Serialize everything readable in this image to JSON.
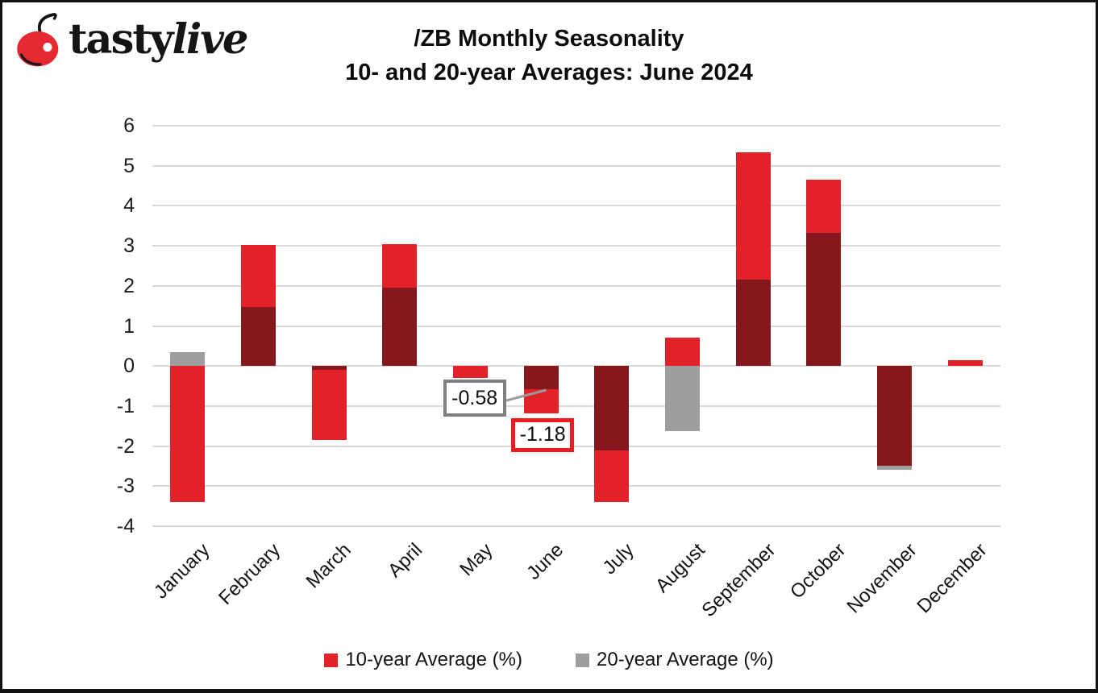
{
  "brand": {
    "text_regular": "tasty",
    "text_italic": "live",
    "cherry_color": "#e42a30",
    "icon": "cherry-icon"
  },
  "title": {
    "line1": "/ZB Monthly Seasonality",
    "line2": "10- and 20-year Averages: June 2024"
  },
  "chart_data": {
    "type": "bar",
    "style": "overlapped-columns",
    "categories": [
      "January",
      "February",
      "March",
      "April",
      "May",
      "June",
      "July",
      "August",
      "September",
      "October",
      "November",
      "December"
    ],
    "series": [
      {
        "name": "10-year Average (%)",
        "color": "#e22128",
        "values": [
          -3.4,
          3.03,
          -1.85,
          3.05,
          -0.3,
          -1.18,
          -3.4,
          0.7,
          5.33,
          4.65,
          -2.5,
          0.15
        ]
      },
      {
        "name": "20-year Average (%)",
        "color": "#9e9e9e",
        "values": [
          0.35,
          1.47,
          -0.1,
          1.95,
          0.0,
          -0.58,
          -2.1,
          -1.63,
          2.15,
          3.33,
          -2.6,
          0.0
        ]
      }
    ],
    "overlap_color": "#84181c",
    "ylim": [
      -4,
      6
    ],
    "ytick_step": 1,
    "grid": true,
    "gridline_color": "#d9d9d9",
    "legend_position": "bottom",
    "xlabel": "",
    "ylabel": "",
    "annotations": [
      {
        "text": "-0.58",
        "value": -0.58,
        "category": "June",
        "series": "20-year Average (%)",
        "box_border_color": "#7f7f7f",
        "has_leader_line": true
      },
      {
        "text": "-1.18",
        "value": -1.18,
        "category": "June",
        "series": "10-year Average (%)",
        "box_border_color": "#ec1c24",
        "has_leader_line": false
      }
    ]
  }
}
